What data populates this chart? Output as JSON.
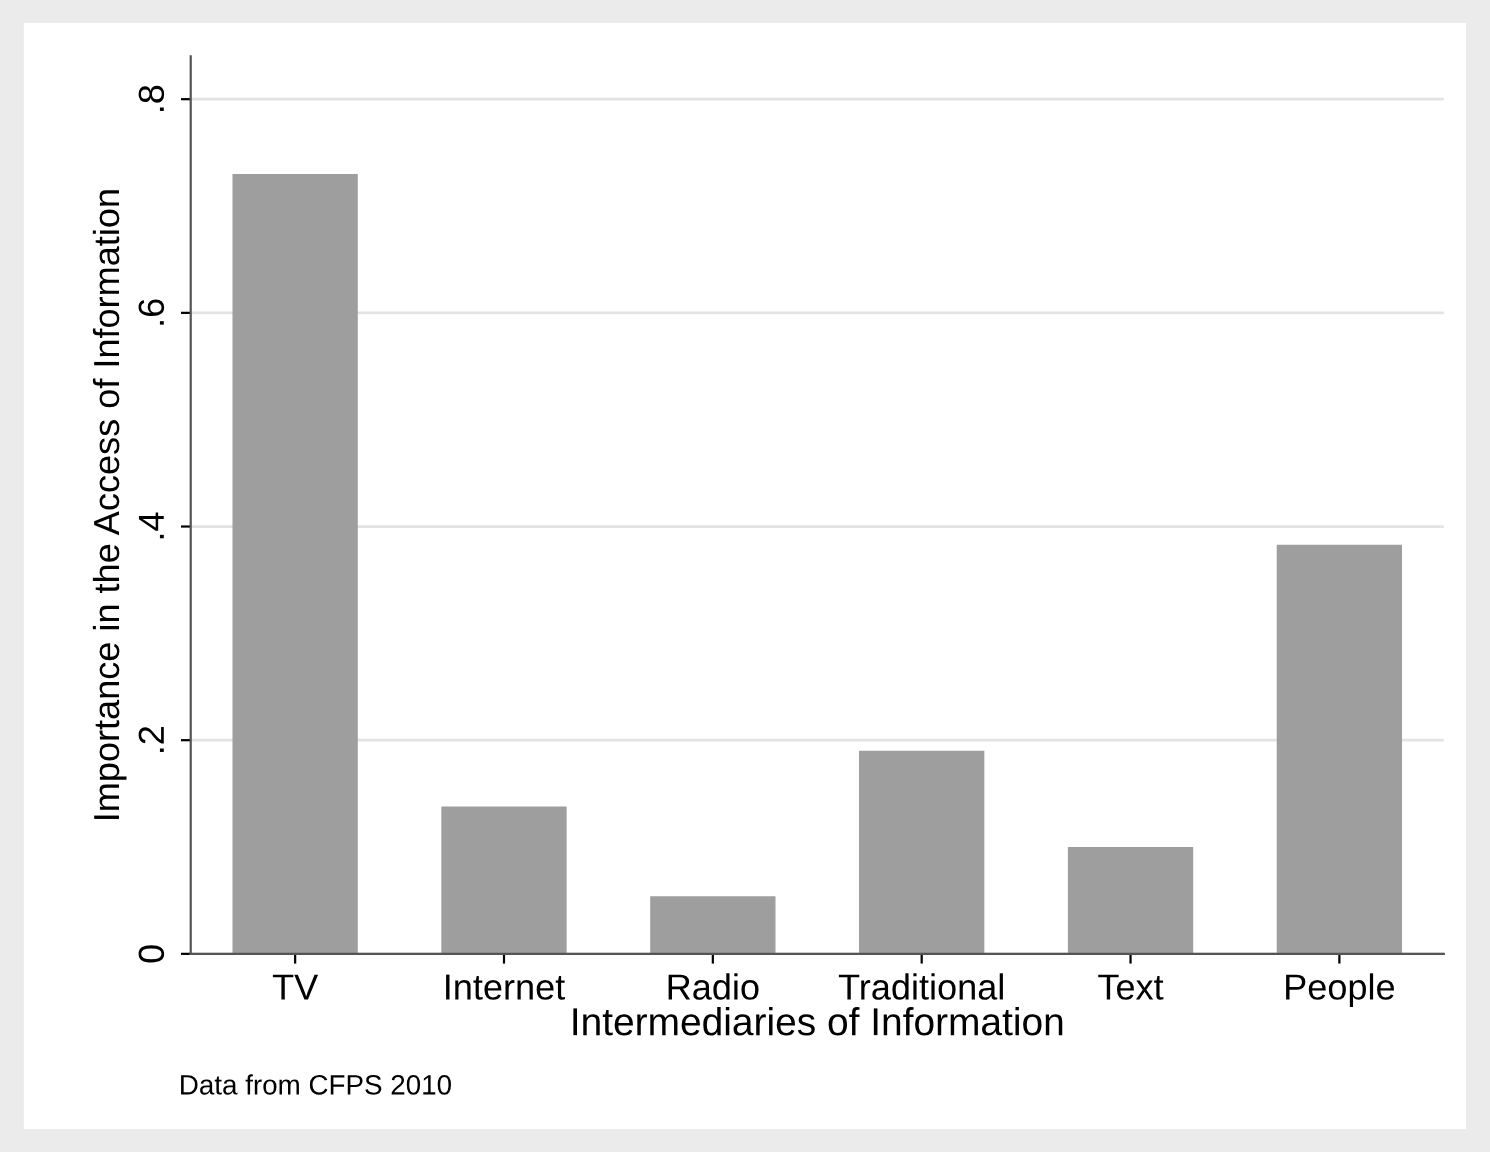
{
  "chart_data": {
    "type": "bar",
    "categories": [
      "TV",
      "Internet",
      "Radio",
      "Traditional",
      "Text",
      "People"
    ],
    "values": [
      0.73,
      0.138,
      0.054,
      0.19,
      0.1,
      0.383
    ],
    "color": "#9e9e9e",
    "xlabel": "Intermediaries of Information",
    "ylabel": "Importance in the Access of Information",
    "ylim": [
      0,
      0.84
    ],
    "yticks": [
      {
        "value": 0,
        "label": "0"
      },
      {
        "value": 0.2,
        "label": ".2"
      },
      {
        "value": 0.4,
        "label": ".4"
      },
      {
        "value": 0.6,
        "label": ".6"
      },
      {
        "value": 0.8,
        "label": ".8"
      }
    ],
    "grid": "y",
    "annotations": [
      "Data from CFPS 2010"
    ]
  }
}
